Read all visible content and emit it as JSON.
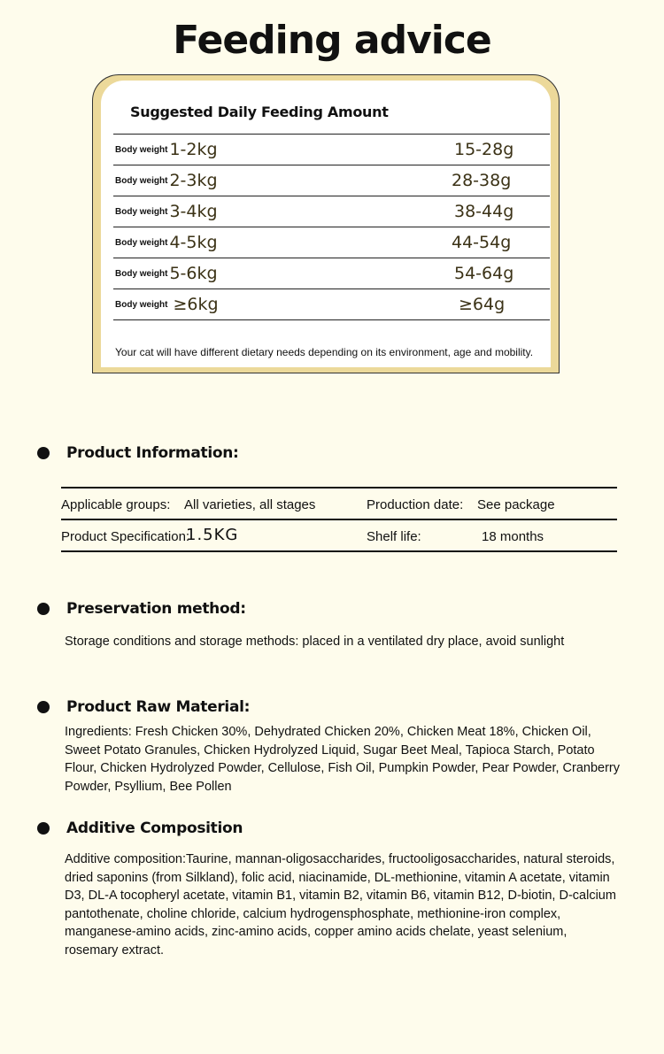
{
  "title": "Feeding advice",
  "feeding": {
    "heading": "Suggested Daily Feeding Amount",
    "rows": [
      {
        "label": "Body weight",
        "weight": "1-2kg",
        "amount": "15-28g"
      },
      {
        "label": "Body weight",
        "weight": "2-3kg",
        "amount": "28-38g"
      },
      {
        "label": "Body weight",
        "weight": "3-4kg",
        "amount": "38-44g"
      },
      {
        "label": "Body weight",
        "weight": "4-5kg",
        "amount": "44-54g"
      },
      {
        "label": "Body weight",
        "weight": "5-6kg",
        "amount": "54-64g"
      },
      {
        "label": "Body weight",
        "weight": "≥6kg",
        "amount": "≥64g"
      }
    ],
    "note": "Your cat will have different dietary needs depending on its environment, age and mobility."
  },
  "product_info": {
    "heading": "Product Information:",
    "applicable_label": "Applicable groups:",
    "applicable_value": "All varieties, all stages",
    "production_label": "Production date:",
    "production_value": "See package",
    "spec_label": "Product Specification:",
    "spec_value": "1.5KG",
    "shelf_label": "Shelf life:",
    "shelf_value": "18 months"
  },
  "preservation": {
    "heading": "Preservation method:",
    "text": "Storage conditions and storage methods: placed in a ventilated dry place, avoid sunlight"
  },
  "raw_material": {
    "heading": "Product Raw Material:",
    "text": "Ingredients: Fresh Chicken 30%, Dehydrated Chicken 20%, Chicken Meat 18%, Chicken Oil, Sweet Potato Granules, Chicken Hydrolyzed Liquid, Sugar Beet Meal, Tapioca Starch, Potato Flour, Chicken Hydrolyzed Powder, Cellulose, Fish Oil, Pumpkin Powder, Pear Powder, Cranberry Powder, Psyllium, Bee Pollen"
  },
  "additive": {
    "heading": "Additive Composition",
    "text": "Additive composition:Taurine, mannan-oligosaccharides, fructooligosaccharides, natural steroids, dried saponins (from Silkland), folic acid, niacinamide, DL-methionine, vitamin A acetate, vitamin D3, DL-A tocopheryl acetate, vitamin B1, vitamin B2, vitamin B6, vitamin B12, D-biotin, D-calcium pantothenate, choline chloride, calcium hydrogensphosphate, methionine-iron complex, manganese-amino acids, zinc-amino acids, copper amino acids chelate, yeast selenium, rosemary extract."
  }
}
